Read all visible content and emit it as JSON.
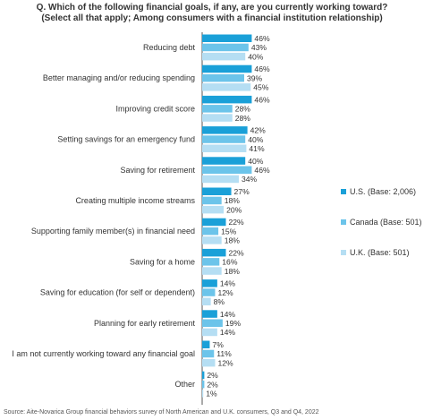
{
  "chart_data": {
    "type": "bar",
    "orientation": "horizontal",
    "title": "Q. Which of the following financial goals, if any, are you currently working toward?",
    "subtitle": "(Select all that apply; Among consumers with a financial institution relationship)",
    "categories": [
      "Reducing debt",
      "Better managing and/or reducing spending",
      "Improving credit score",
      "Setting savings for an emergency fund",
      "Saving for retirement",
      "Creating multiple income streams",
      "Supporting family member(s) in financial need",
      "Saving for a home",
      "Saving for education (for self or dependent)",
      "Planning for early retirement",
      "I am not currently working toward any financial goal",
      "Other"
    ],
    "series": [
      {
        "name": "U.S. (Base: 2,006)",
        "color": "#1aa0d8",
        "values": [
          46,
          46,
          46,
          42,
          40,
          27,
          22,
          22,
          14,
          14,
          7,
          2
        ]
      },
      {
        "name": "Canada (Base: 501)",
        "color": "#6cc4ea",
        "values": [
          43,
          39,
          28,
          40,
          46,
          18,
          15,
          16,
          12,
          19,
          11,
          2
        ]
      },
      {
        "name": "U.K. (Base: 501)",
        "color": "#b5def3",
        "values": [
          40,
          45,
          28,
          41,
          34,
          20,
          18,
          18,
          8,
          14,
          12,
          1
        ]
      }
    ],
    "value_suffix": "%",
    "legend_position": "right",
    "grid": false
  },
  "source": "Source: Aite-Novarica Group financial behaviors survey of North American and U.K. consumers, Q3 and Q4, 2022"
}
